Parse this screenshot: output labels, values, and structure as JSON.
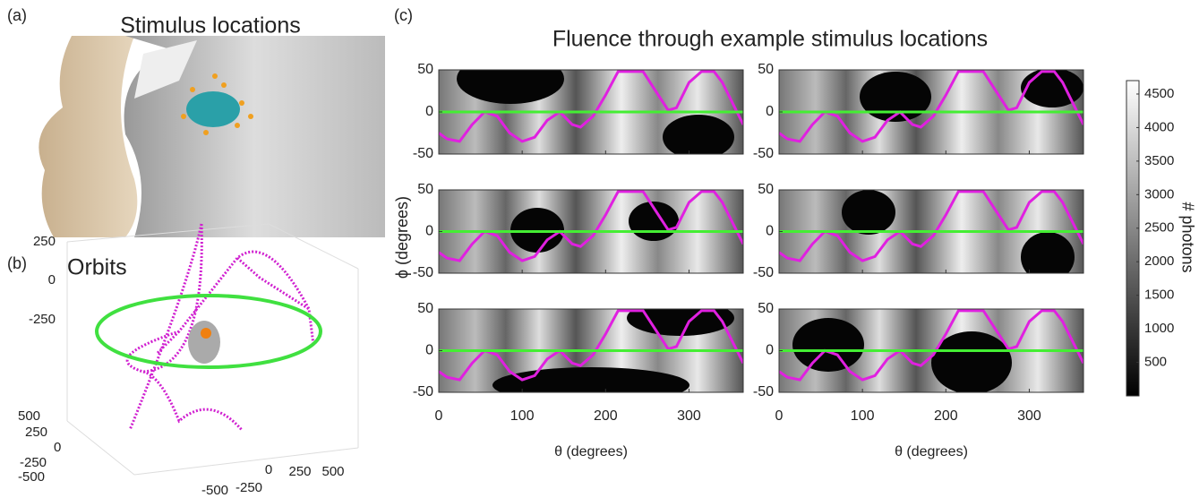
{
  "panel_a": {
    "label": "(a)",
    "title": "Stimulus locations"
  },
  "panel_b": {
    "label": "(b)",
    "title": "Orbits",
    "zticks": [
      250,
      0,
      -250
    ],
    "yticks": [
      500,
      250,
      0,
      -250,
      -500
    ],
    "xticks": [
      -500,
      -250,
      0,
      250,
      500
    ]
  },
  "chart_data": {
    "type": "line",
    "label": "(c)",
    "title": "Fluence through example stimulus locations",
    "xlabel": "θ (degrees)",
    "ylabel": "ϕ (degrees)",
    "xlim": [
      0,
      365
    ],
    "ylim": [
      -50,
      50
    ],
    "xticks": [
      0,
      100,
      200,
      300
    ],
    "yticks": [
      50,
      0,
      -50
    ],
    "series": [
      {
        "color": "#e020e0",
        "x": [
          0,
          10,
          25,
          40,
          55,
          70,
          85,
          100,
          115,
          130,
          145,
          160,
          170,
          185,
          200,
          215,
          230,
          245,
          260,
          275,
          285,
          300,
          315,
          330,
          340,
          355,
          365
        ],
        "values": [
          -25,
          -32,
          -35,
          -15,
          0,
          -5,
          -25,
          -35,
          -30,
          -10,
          0,
          -15,
          -18,
          -5,
          20,
          48,
          48,
          48,
          25,
          2,
          5,
          35,
          48,
          48,
          35,
          5,
          -15
        ]
      },
      {
        "color": "#44ee33",
        "x": [
          0,
          365
        ],
        "values": [
          0,
          0
        ]
      }
    ],
    "colorbar": {
      "label": "# photons",
      "clim": [
        0,
        4700
      ],
      "ticks": [
        500,
        1000,
        1500,
        2000,
        2500,
        3000,
        3500,
        4000,
        4500
      ]
    }
  }
}
